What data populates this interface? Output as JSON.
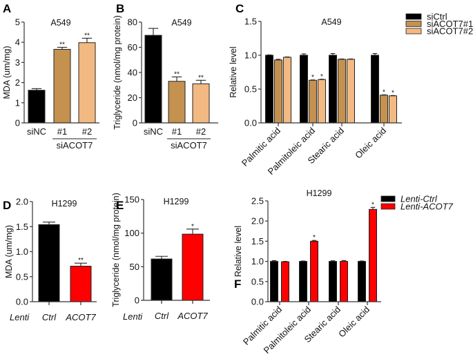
{
  "chart_data": [
    {
      "id": "A",
      "panel_letter": "A",
      "type": "bar",
      "title": "A549",
      "ylabel": "MDA (um/mg)",
      "xlabel": "",
      "ylim": [
        0,
        5
      ],
      "yticks": [
        0,
        1,
        2,
        3,
        4,
        5
      ],
      "ytick_labels": [
        "0",
        "1",
        "2",
        "3",
        "4",
        "5"
      ],
      "categories": [
        "siNC",
        "#1",
        "#2"
      ],
      "group_label": "siACOT7",
      "group_spans": [
        "#1",
        "#2"
      ],
      "values": [
        1.62,
        3.65,
        3.98
      ],
      "errors": [
        0.08,
        0.1,
        0.22
      ],
      "colors": [
        "#000000",
        "#C4914F",
        "#F2B982"
      ],
      "significance": [
        "",
        "**",
        "**"
      ]
    },
    {
      "id": "B",
      "panel_letter": "B",
      "type": "bar",
      "title": "A549",
      "ylabel": "Triglyceride (nmol/mg protein)",
      "xlabel": "",
      "ylim": [
        0,
        80
      ],
      "yticks": [
        0,
        20,
        40,
        60,
        80
      ],
      "ytick_labels": [
        "0",
        "20",
        "40",
        "60",
        "80"
      ],
      "categories": [
        "siNC",
        "#1",
        "#2"
      ],
      "group_label": "siACOT7",
      "group_spans": [
        "#1",
        "#2"
      ],
      "values": [
        69.5,
        33,
        31
      ],
      "errors": [
        5.5,
        3.5,
        2.8
      ],
      "colors": [
        "#000000",
        "#C4914F",
        "#F2B982"
      ],
      "significance": [
        "",
        "**",
        "**"
      ]
    },
    {
      "id": "C",
      "panel_letter": "C",
      "type": "bar",
      "title": "A549",
      "ylabel": "Relative level",
      "xlabel": "",
      "ylim": [
        0,
        1.5
      ],
      "yticks": [
        0,
        0.5,
        1.0,
        1.5
      ],
      "ytick_labels": [
        "0.0",
        "0.5",
        "1.0",
        "1.5"
      ],
      "categories": [
        "Palmitic acid",
        "Palmitoleic acid",
        "Stearic acid",
        "Oleic acid"
      ],
      "legend_position": "top-right",
      "series": [
        {
          "name": "siCtrl",
          "color": "#000000",
          "values": [
            1.0,
            1.0,
            1.0,
            1.0
          ],
          "errors": [
            0.005,
            0.02,
            0.025,
            0.025
          ],
          "significance": [
            "",
            "",
            "",
            ""
          ]
        },
        {
          "name": "siACOT7#1",
          "color": "#C4914F",
          "values": [
            0.93,
            0.63,
            0.94,
            0.41
          ],
          "errors": [
            0.01,
            0.005,
            0.005,
            0.005
          ],
          "significance": [
            "",
            "*",
            "",
            "*"
          ]
        },
        {
          "name": "siACOT7#2",
          "color": "#F2B982",
          "values": [
            0.97,
            0.64,
            0.94,
            0.4
          ],
          "errors": [
            0.005,
            0.005,
            0.005,
            0.005
          ],
          "significance": [
            "",
            "*",
            "",
            "*"
          ]
        }
      ]
    },
    {
      "id": "D",
      "panel_letter": "D",
      "type": "bar",
      "title": "H1299",
      "ylabel": "MDA (um/mg)",
      "xlabel": "",
      "ylim": [
        0,
        2.0
      ],
      "yticks": [
        0,
        0.5,
        1.0,
        1.5,
        2.0
      ],
      "ytick_labels": [
        "0.0",
        "0.5",
        "1.0",
        "1.5",
        "2.0"
      ],
      "row_label": "Lenti",
      "categories": [
        "Ctrl",
        "ACOT7"
      ],
      "values": [
        1.54,
        0.71
      ],
      "errors": [
        0.05,
        0.06
      ],
      "colors": [
        "#000000",
        "#FF0000"
      ],
      "significance": [
        "",
        "**"
      ]
    },
    {
      "id": "E",
      "panel_letter": "E",
      "type": "bar",
      "title": "H1299",
      "ylabel": "Triglyceride (nmol/mg protein)",
      "xlabel": "",
      "ylim": [
        0,
        150
      ],
      "yticks": [
        0,
        50,
        100,
        150
      ],
      "ytick_labels": [
        "0",
        "50",
        "100",
        "150"
      ],
      "row_label": "Lenti",
      "categories": [
        "Ctrl",
        "ACOT7"
      ],
      "values": [
        61.5,
        98.5
      ],
      "errors": [
        4,
        7.5
      ],
      "colors": [
        "#000000",
        "#FF0000"
      ],
      "significance": [
        "",
        "*"
      ]
    },
    {
      "id": "F",
      "panel_letter": "F",
      "type": "bar",
      "title": "H1299",
      "ylabel": "Relative level",
      "xlabel": "",
      "ylim": [
        0,
        2.5
      ],
      "yticks": [
        0,
        0.5,
        1.0,
        1.5,
        2.0,
        2.5
      ],
      "ytick_labels": [
        "0.0",
        "0.5",
        "1.0",
        "1.5",
        "2.0",
        "2.5"
      ],
      "categories": [
        "Palmitic acid",
        "Palmitoleic acid",
        "Stearic acid",
        "Oleic acid"
      ],
      "legend_position": "top-right",
      "series": [
        {
          "name": "Lenti-Ctrl",
          "color": "#000000",
          "values": [
            1.0,
            1.0,
            1.0,
            1.0
          ],
          "errors": [
            0.02,
            0.01,
            0.015,
            0.01
          ],
          "significance": [
            "",
            "",
            "",
            ""
          ]
        },
        {
          "name": "Lenti-ACOT7",
          "color": "#FF0000",
          "values": [
            0.99,
            1.5,
            1.0,
            2.29
          ],
          "errors": [
            0.01,
            0.02,
            0.02,
            0.05
          ],
          "significance": [
            "",
            "*",
            "",
            "*"
          ]
        }
      ]
    }
  ]
}
